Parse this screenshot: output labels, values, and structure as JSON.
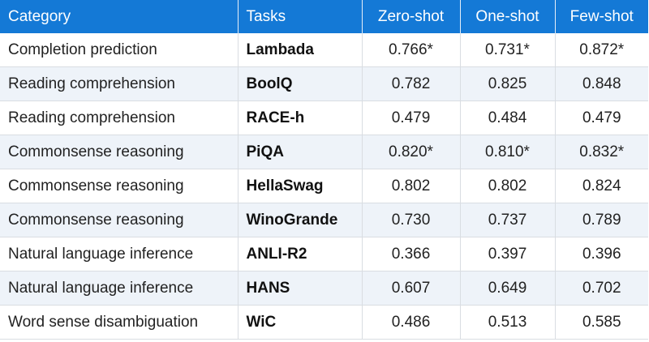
{
  "table": {
    "headers": {
      "category": "Category",
      "tasks": "Tasks",
      "zero_shot": "Zero-shot",
      "one_shot": "One-shot",
      "few_shot": "Few-shot"
    },
    "rows": [
      {
        "category": "Completion prediction",
        "task": "Lambada",
        "zero": "0.766*",
        "one": "0.731*",
        "few": "0.872*"
      },
      {
        "category": "Reading comprehension",
        "task": "BoolQ",
        "zero": "0.782",
        "one": "0.825",
        "few": "0.848"
      },
      {
        "category": "Reading comprehension",
        "task": "RACE-h",
        "zero": "0.479",
        "one": "0.484",
        "few": "0.479"
      },
      {
        "category": "Commonsense reasoning",
        "task": "PiQA",
        "zero": "0.820*",
        "one": "0.810*",
        "few": "0.832*"
      },
      {
        "category": "Commonsense reasoning",
        "task": "HellaSwag",
        "zero": "0.802",
        "one": "0.802",
        "few": "0.824"
      },
      {
        "category": "Commonsense reasoning",
        "task": "WinoGrande",
        "zero": "0.730",
        "one": "0.737",
        "few": "0.789"
      },
      {
        "category": "Natural language inference",
        "task": "ANLI-R2",
        "zero": "0.366",
        "one": "0.397",
        "few": "0.396"
      },
      {
        "category": "Natural language inference",
        "task": "HANS",
        "zero": "0.607",
        "one": "0.649",
        "few": "0.702"
      },
      {
        "category": "Word sense disambiguation",
        "task": "WiC",
        "zero": "0.486",
        "one": "0.513",
        "few": "0.585"
      }
    ]
  },
  "colors": {
    "header_bg": "#1479d6",
    "header_text": "#ffffff",
    "stripe_bg": "#eef3f9"
  }
}
